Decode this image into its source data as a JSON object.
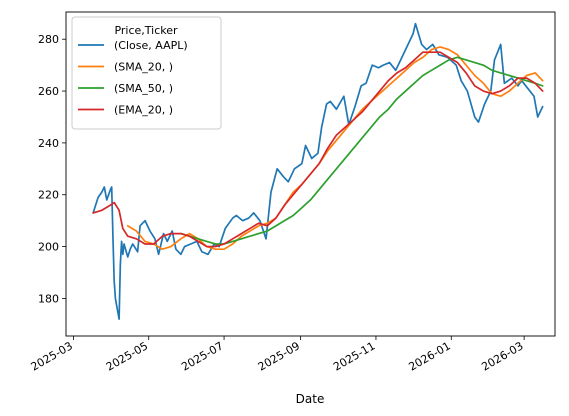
{
  "chart_data": {
    "type": "line",
    "xlabel": "Date",
    "ylabel": "",
    "title": "",
    "xlim": [
      "2025-02-23",
      "2026-03-26"
    ],
    "ylim": [
      165.5,
      290.5
    ],
    "yticks": [
      180,
      200,
      220,
      240,
      260,
      280
    ],
    "xticks": [
      "2025-03",
      "2025-05",
      "2025-07",
      "2025-09",
      "2025-11",
      "2026-01",
      "2026-03"
    ],
    "legend": {
      "title": "Price,Ticker",
      "placement": "top-left"
    },
    "grid": false,
    "series": [
      {
        "name": "(Close, AAPL)",
        "color": "#1f77b4",
        "x": [
          "2025-03-17",
          "2025-03-19",
          "2025-03-21",
          "2025-03-24",
          "2025-03-26",
          "2025-03-28",
          "2025-03-31",
          "2025-04-01",
          "2025-04-02",
          "2025-04-03",
          "2025-04-04",
          "2025-04-07",
          "2025-04-08",
          "2025-04-09",
          "2025-04-10",
          "2025-04-11",
          "2025-04-14",
          "2025-04-16",
          "2025-04-18",
          "2025-04-22",
          "2025-04-24",
          "2025-04-28",
          "2025-05-02",
          "2025-05-06",
          "2025-05-09",
          "2025-05-13",
          "2025-05-16",
          "2025-05-20",
          "2025-05-23",
          "2025-05-27",
          "2025-05-30",
          "2025-06-04",
          "2025-06-09",
          "2025-06-13",
          "2025-06-18",
          "2025-06-23",
          "2025-06-27",
          "2025-07-02",
          "2025-07-08",
          "2025-07-11",
          "2025-07-16",
          "2025-07-21",
          "2025-07-25",
          "2025-07-30",
          "2025-08-04",
          "2025-08-08",
          "2025-08-13",
          "2025-08-18",
          "2025-08-22",
          "2025-08-27",
          "2025-09-02",
          "2025-09-05",
          "2025-09-10",
          "2025-09-15",
          "2025-09-18",
          "2025-09-22",
          "2025-09-25",
          "2025-09-30",
          "2025-10-06",
          "2025-10-10",
          "2025-10-15",
          "2025-10-20",
          "2025-10-24",
          "2025-10-29",
          "2025-11-03",
          "2025-11-07",
          "2025-11-12",
          "2025-11-17",
          "2025-11-21",
          "2025-11-26",
          "2025-12-01",
          "2025-12-03",
          "2025-12-08",
          "2025-12-12",
          "2025-12-17",
          "2025-12-22",
          "2025-12-29",
          "2026-01-05",
          "2026-01-09",
          "2026-01-14",
          "2026-01-20",
          "2026-01-23",
          "2026-01-28",
          "2026-02-02",
          "2026-02-05",
          "2026-02-10",
          "2026-02-13",
          "2026-02-19",
          "2026-02-24",
          "2026-02-27",
          "2026-03-04",
          "2026-03-09",
          "2026-03-12",
          "2026-03-16"
        ],
        "values": [
          213,
          216,
          219,
          221,
          223,
          218,
          222,
          223,
          204,
          187,
          180,
          172,
          193,
          202,
          197,
          201,
          196,
          199,
          201,
          198,
          208,
          210,
          206,
          203,
          197,
          205,
          202,
          206,
          199,
          197,
          200,
          201,
          202,
          198,
          197,
          201,
          200,
          207,
          211,
          212,
          210,
          211,
          213,
          210,
          203,
          221,
          230,
          227,
          225,
          230,
          232,
          239,
          234,
          236,
          246,
          255,
          256,
          253,
          258,
          247,
          254,
          262,
          263,
          270,
          269,
          270,
          271,
          268,
          272,
          277,
          282,
          286,
          278,
          276,
          278,
          274,
          273,
          270,
          264,
          260,
          250,
          248,
          255,
          260,
          272,
          278,
          263,
          265,
          262,
          264,
          261,
          258,
          250,
          254
        ]
      },
      {
        "name": "(SMA_20, )",
        "color": "#ff7f0e",
        "x": [
          "2025-04-14",
          "2025-04-21",
          "2025-04-28",
          "2025-05-05",
          "2025-05-12",
          "2025-05-19",
          "2025-05-27",
          "2025-06-03",
          "2025-06-10",
          "2025-06-17",
          "2025-06-24",
          "2025-07-01",
          "2025-07-08",
          "2025-07-15",
          "2025-07-22",
          "2025-07-29",
          "2025-08-05",
          "2025-08-12",
          "2025-08-19",
          "2025-08-26",
          "2025-09-02",
          "2025-09-09",
          "2025-09-16",
          "2025-09-23",
          "2025-09-30",
          "2025-10-07",
          "2025-10-14",
          "2025-10-21",
          "2025-10-28",
          "2025-11-04",
          "2025-11-11",
          "2025-11-18",
          "2025-11-25",
          "2025-12-02",
          "2025-12-09",
          "2025-12-16",
          "2025-12-23",
          "2025-12-30",
          "2026-01-06",
          "2026-01-13",
          "2026-01-20",
          "2026-01-27",
          "2026-02-03",
          "2026-02-10",
          "2026-02-17",
          "2026-02-24",
          "2026-03-03",
          "2026-03-10",
          "2026-03-16"
        ],
        "values": [
          208,
          206,
          202,
          201,
          199,
          200,
          203,
          205,
          203,
          200,
          199,
          199,
          201,
          204,
          206,
          208,
          209,
          211,
          216,
          221,
          224,
          228,
          232,
          237,
          241,
          245,
          249,
          253,
          256,
          259,
          262,
          265,
          268,
          271,
          273,
          276,
          277,
          276,
          274,
          270,
          266,
          263,
          259,
          258,
          260,
          263,
          266,
          267,
          264
        ]
      },
      {
        "name": "(SMA_50, )",
        "color": "#2ca02c",
        "x": [
          "2025-05-27",
          "2025-06-03",
          "2025-06-10",
          "2025-06-17",
          "2025-06-24",
          "2025-07-01",
          "2025-07-08",
          "2025-07-15",
          "2025-07-22",
          "2025-07-29",
          "2025-08-05",
          "2025-08-12",
          "2025-08-19",
          "2025-08-26",
          "2025-09-02",
          "2025-09-09",
          "2025-09-16",
          "2025-09-23",
          "2025-09-30",
          "2025-10-07",
          "2025-10-14",
          "2025-10-21",
          "2025-10-28",
          "2025-11-04",
          "2025-11-11",
          "2025-11-18",
          "2025-11-25",
          "2025-12-02",
          "2025-12-09",
          "2025-12-16",
          "2025-12-23",
          "2025-12-30",
          "2026-01-06",
          "2026-01-13",
          "2026-01-20",
          "2026-01-27",
          "2026-02-03",
          "2026-02-10",
          "2026-02-17",
          "2026-02-24",
          "2026-03-03",
          "2026-03-10",
          "2026-03-16"
        ],
        "values": [
          205,
          204,
          203,
          202,
          201,
          201,
          202,
          203,
          204,
          205,
          206,
          208,
          210,
          212,
          215,
          218,
          222,
          226,
          230,
          234,
          238,
          242,
          246,
          250,
          253,
          257,
          260,
          263,
          266,
          268,
          270,
          272,
          273,
          272,
          271,
          270,
          268,
          267,
          266,
          265,
          264,
          263,
          262
        ]
      },
      {
        "name": "(EMA_20, )",
        "color": "#d62728",
        "x": [
          "2025-03-17",
          "2025-03-24",
          "2025-03-31",
          "2025-04-03",
          "2025-04-07",
          "2025-04-10",
          "2025-04-14",
          "2025-04-21",
          "2025-04-28",
          "2025-05-05",
          "2025-05-12",
          "2025-05-19",
          "2025-05-27",
          "2025-06-03",
          "2025-06-10",
          "2025-06-17",
          "2025-06-24",
          "2025-07-01",
          "2025-07-08",
          "2025-07-15",
          "2025-07-22",
          "2025-07-29",
          "2025-08-05",
          "2025-08-12",
          "2025-08-19",
          "2025-08-26",
          "2025-09-02",
          "2025-09-09",
          "2025-09-16",
          "2025-09-23",
          "2025-09-30",
          "2025-10-07",
          "2025-10-14",
          "2025-10-21",
          "2025-10-28",
          "2025-11-04",
          "2025-11-11",
          "2025-11-18",
          "2025-11-25",
          "2025-12-02",
          "2025-12-09",
          "2025-12-16",
          "2025-12-23",
          "2025-12-30",
          "2026-01-06",
          "2026-01-13",
          "2026-01-20",
          "2026-01-27",
          "2026-02-03",
          "2026-02-10",
          "2026-02-17",
          "2026-02-24",
          "2026-03-03",
          "2026-03-10",
          "2026-03-16"
        ],
        "values": [
          213,
          214,
          216,
          217,
          214,
          207,
          204,
          203,
          201,
          201,
          204,
          205,
          205,
          204,
          202,
          200,
          200,
          201,
          203,
          205,
          207,
          209,
          208,
          211,
          216,
          220,
          224,
          228,
          232,
          238,
          243,
          246,
          249,
          252,
          256,
          260,
          264,
          267,
          269,
          272,
          275,
          275,
          275,
          273,
          271,
          267,
          262,
          260,
          259,
          260,
          262,
          265,
          265,
          263,
          260
        ]
      }
    ]
  }
}
